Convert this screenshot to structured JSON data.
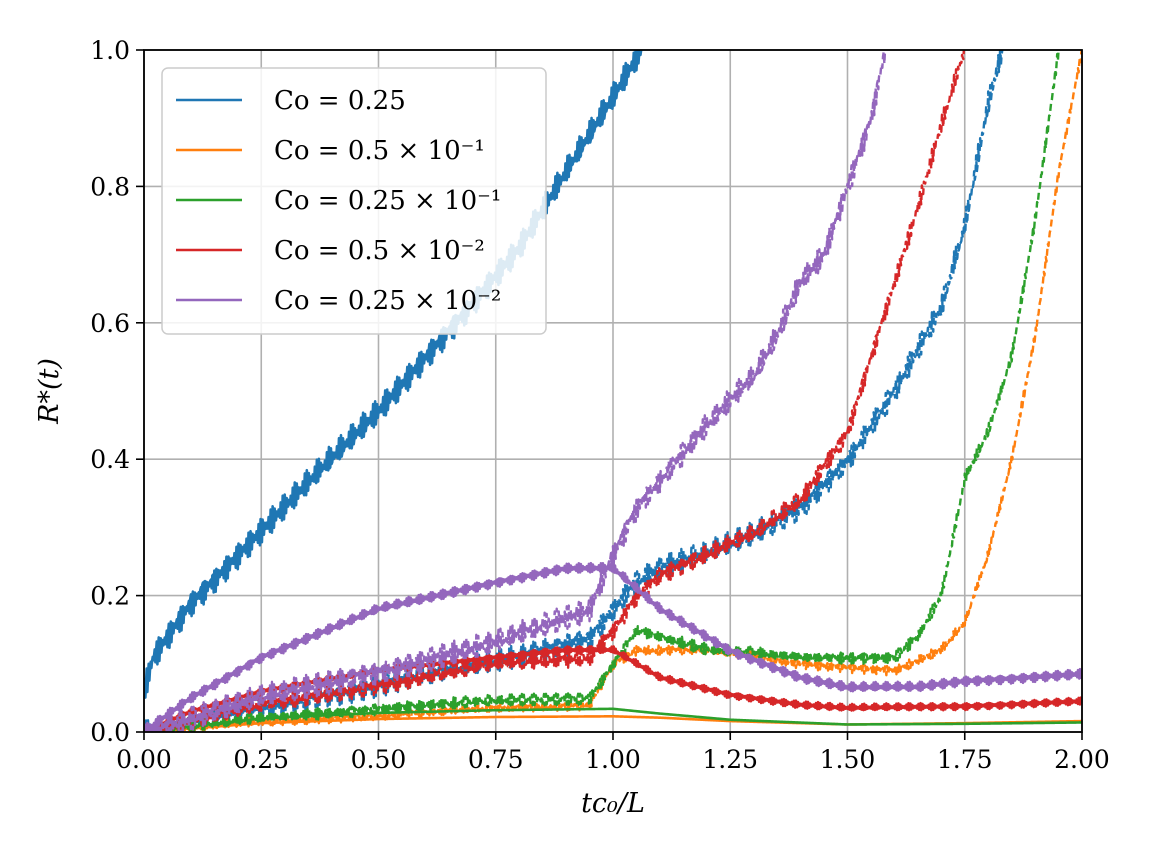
{
  "chart_data": {
    "type": "line",
    "title": "",
    "xlabel": "tc₀/L",
    "ylabel": "R*(t)",
    "xlim": [
      0.0,
      2.0
    ],
    "ylim": [
      0.0,
      1.0
    ],
    "grid": true,
    "legend_position": "top-left",
    "xticks": [
      "0.00",
      "0.25",
      "0.50",
      "0.75",
      "1.00",
      "1.25",
      "1.50",
      "1.75",
      "2.00"
    ],
    "yticks": [
      "0.0",
      "0.2",
      "0.4",
      "0.6",
      "0.8",
      "1.0"
    ],
    "series": [
      {
        "name": "Co = 0.25",
        "color": "#1f77b4",
        "style": "solid",
        "oscillation": 0.022,
        "x": [
          0.0,
          0.02,
          0.1,
          0.2,
          0.3,
          0.4,
          0.5,
          0.6,
          0.7,
          0.8,
          0.9,
          1.0,
          1.06
        ],
        "y": [
          0.06,
          0.11,
          0.19,
          0.26,
          0.33,
          0.4,
          0.47,
          0.55,
          0.63,
          0.71,
          0.82,
          0.93,
          1.0
        ]
      },
      {
        "name": "Co = 0.25",
        "color": "#1f77b4",
        "style": "dashed",
        "oscillation": 0.02,
        "x": [
          0.0,
          0.2,
          0.5,
          0.8,
          0.95,
          1.0,
          1.05,
          1.1,
          1.2,
          1.3,
          1.4,
          1.5,
          1.6,
          1.7,
          1.75,
          1.8,
          1.83
        ],
        "y": [
          0.0,
          0.03,
          0.07,
          0.11,
          0.14,
          0.18,
          0.22,
          0.24,
          0.26,
          0.29,
          0.33,
          0.4,
          0.5,
          0.62,
          0.74,
          0.92,
          1.0
        ]
      },
      {
        "name": "Co = 0.5 × 10⁻¹",
        "color": "#ff7f0e",
        "style": "solid",
        "oscillation": 0.0,
        "x": [
          0.0,
          0.25,
          0.5,
          0.75,
          1.0,
          1.1,
          1.25,
          1.5,
          1.75,
          2.0
        ],
        "y": [
          0.0,
          0.013,
          0.019,
          0.022,
          0.023,
          0.021,
          0.016,
          0.011,
          0.013,
          0.016
        ]
      },
      {
        "name": "Co = 0.5 × 10⁻¹",
        "color": "#ff7f0e",
        "style": "dashed",
        "oscillation": 0.008,
        "x": [
          0.0,
          0.25,
          0.5,
          0.75,
          0.95,
          1.0,
          1.05,
          1.2,
          1.4,
          1.6,
          1.7,
          1.75,
          1.8,
          1.85,
          1.9,
          1.95,
          2.0
        ],
        "y": [
          0.0,
          0.015,
          0.025,
          0.035,
          0.04,
          0.1,
          0.12,
          0.12,
          0.1,
          0.09,
          0.12,
          0.16,
          0.26,
          0.4,
          0.58,
          0.82,
          1.0
        ]
      },
      {
        "name": "Co = 0.25 × 10⁻¹",
        "color": "#2ca02c",
        "style": "solid",
        "oscillation": 0.0,
        "x": [
          0.0,
          0.25,
          0.5,
          0.75,
          1.0,
          1.1,
          1.25,
          1.5,
          1.75,
          2.0
        ],
        "y": [
          0.0,
          0.02,
          0.028,
          0.032,
          0.034,
          0.027,
          0.018,
          0.011,
          0.012,
          0.014
        ]
      },
      {
        "name": "Co = 0.25 × 10⁻¹",
        "color": "#2ca02c",
        "style": "dashed",
        "oscillation": 0.01,
        "x": [
          0.0,
          0.25,
          0.5,
          0.75,
          0.95,
          1.0,
          1.05,
          1.2,
          1.4,
          1.6,
          1.65,
          1.7,
          1.75,
          1.8,
          1.85,
          1.9,
          1.95
        ],
        "y": [
          0.0,
          0.02,
          0.035,
          0.045,
          0.05,
          0.1,
          0.15,
          0.12,
          0.11,
          0.11,
          0.14,
          0.2,
          0.37,
          0.44,
          0.55,
          0.75,
          1.0
        ]
      },
      {
        "name": "Co = 0.5 × 10⁻²",
        "color": "#d62728",
        "style": "solid",
        "oscillation": 0.006,
        "x": [
          0.0,
          0.1,
          0.25,
          0.5,
          0.75,
          0.9,
          1.0,
          1.1,
          1.25,
          1.4,
          1.5,
          1.75,
          2.0
        ],
        "y": [
          0.0,
          0.03,
          0.06,
          0.09,
          0.11,
          0.12,
          0.12,
          0.08,
          0.055,
          0.04,
          0.035,
          0.038,
          0.045
        ]
      },
      {
        "name": "Co = 0.5 × 10⁻²",
        "color": "#d62728",
        "style": "dashed",
        "oscillation": 0.015,
        "x": [
          0.0,
          0.25,
          0.5,
          0.75,
          0.95,
          1.0,
          1.05,
          1.1,
          1.2,
          1.3,
          1.4,
          1.5,
          1.55,
          1.6,
          1.65,
          1.7,
          1.75
        ],
        "y": [
          0.0,
          0.04,
          0.07,
          0.1,
          0.11,
          0.15,
          0.2,
          0.23,
          0.26,
          0.29,
          0.34,
          0.44,
          0.55,
          0.66,
          0.77,
          0.89,
          1.0
        ]
      },
      {
        "name": "Co = 0.25 × 10⁻²",
        "color": "#9467bd",
        "style": "solid",
        "oscillation": 0.008,
        "x": [
          0.0,
          0.1,
          0.25,
          0.5,
          0.75,
          0.9,
          1.0,
          1.1,
          1.25,
          1.4,
          1.5,
          1.65,
          1.75,
          2.0
        ],
        "y": [
          0.0,
          0.05,
          0.11,
          0.18,
          0.22,
          0.24,
          0.24,
          0.18,
          0.12,
          0.08,
          0.065,
          0.066,
          0.075,
          0.085
        ]
      },
      {
        "name": "Co = 0.25 × 10⁻²",
        "color": "#9467bd",
        "style": "dashed",
        "oscillation": 0.02,
        "x": [
          0.0,
          0.25,
          0.5,
          0.75,
          0.95,
          1.0,
          1.05,
          1.1,
          1.2,
          1.3,
          1.35,
          1.4,
          1.45,
          1.5,
          1.55,
          1.58
        ],
        "y": [
          0.0,
          0.05,
          0.09,
          0.13,
          0.18,
          0.26,
          0.33,
          0.37,
          0.45,
          0.52,
          0.58,
          0.66,
          0.7,
          0.8,
          0.9,
          1.0
        ]
      }
    ],
    "legend": [
      {
        "label": "Co = 0.25",
        "color": "#1f77b4"
      },
      {
        "label": "Co = 0.5 × 10⁻¹",
        "color": "#ff7f0e"
      },
      {
        "label": "Co = 0.25 × 10⁻¹",
        "color": "#2ca02c"
      },
      {
        "label": "Co = 0.5 × 10⁻²",
        "color": "#d62728"
      },
      {
        "label": "Co = 0.25 × 10⁻²",
        "color": "#9467bd"
      }
    ]
  }
}
